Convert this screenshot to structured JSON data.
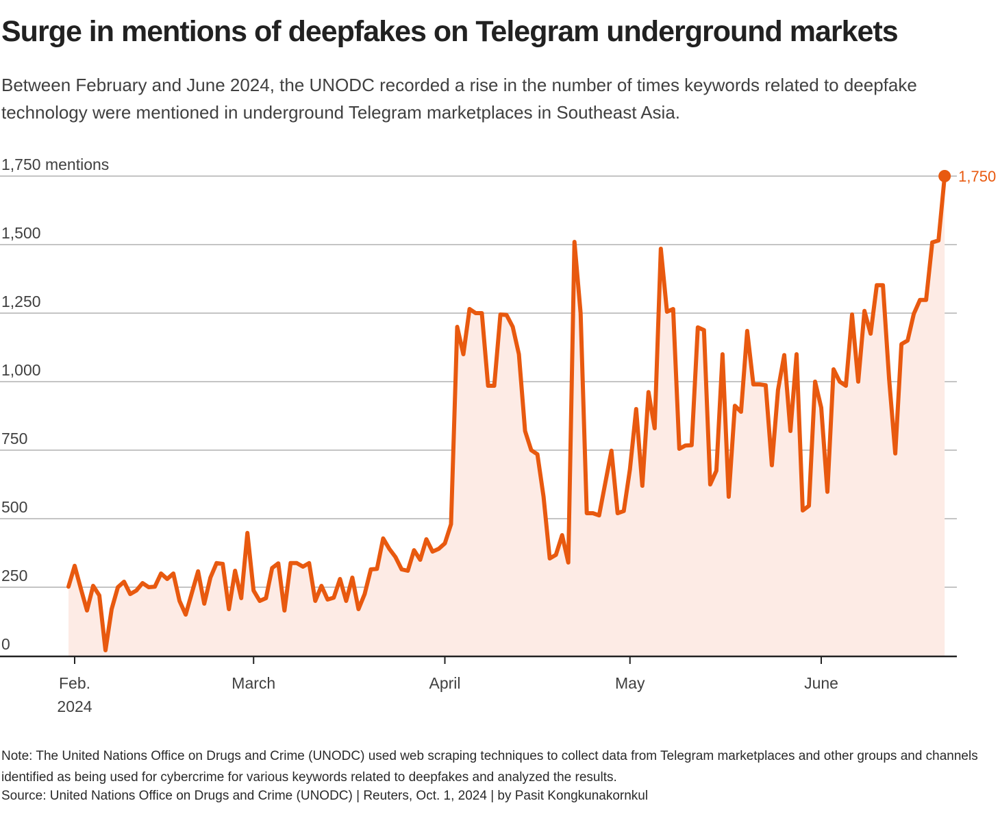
{
  "header": {
    "title": "Surge in mentions of deepfakes on Telegram underground markets",
    "subtitle": "Between February and June 2024, the UNODC recorded a rise in the number of times keywords related to deepfake technology were mentioned in underground Telegram marketplaces in Southeast Asia."
  },
  "footer": {
    "note": "Note: The United Nations Office on Drugs and Crime (UNODC) used web scraping techniques to collect data from Telegram marketplaces and other groups and channels identified as being used for cybercrime for various keywords related to deepfakes and analyzed the results.",
    "source": "Source: United Nations Office on Drugs and Crime (UNODC) | Reuters, Oct. 1, 2024 | by Pasit Kongkunakornkul"
  },
  "colors": {
    "line": "#e8590f",
    "fill": "#fdebe5",
    "grid": "#c4c4c4",
    "axis": "#222222"
  },
  "chart_data": {
    "type": "area",
    "title": "Surge in mentions of deepfakes on Telegram underground markets",
    "ylabel": "mentions",
    "ylim": [
      0,
      1750
    ],
    "yticks": [
      {
        "value": 0,
        "label": "0"
      },
      {
        "value": 250,
        "label": "250"
      },
      {
        "value": 500,
        "label": "500"
      },
      {
        "value": 750,
        "label": "750"
      },
      {
        "value": 1000,
        "label": "1,000"
      },
      {
        "value": 1250,
        "label": "1,250"
      },
      {
        "value": 1500,
        "label": "1,500"
      },
      {
        "value": 1750,
        "label": "1,750 mentions"
      }
    ],
    "xticks": [
      {
        "day": 1,
        "label": "Feb.",
        "label2": "2024"
      },
      {
        "day": 30,
        "label": "March",
        "label2": ""
      },
      {
        "day": 61,
        "label": "April",
        "label2": ""
      },
      {
        "day": 91,
        "label": "May",
        "label2": ""
      },
      {
        "day": 122,
        "label": "June",
        "label2": ""
      }
    ],
    "x_start": "2024-01-31",
    "x_unit": "day",
    "end_label": "1,750",
    "grid": true,
    "values": [
      252,
      328,
      245,
      165,
      255,
      220,
      20,
      170,
      250,
      270,
      225,
      238,
      265,
      250,
      252,
      300,
      280,
      300,
      200,
      150,
      230,
      308,
      190,
      285,
      338,
      335,
      170,
      310,
      210,
      448,
      238,
      200,
      210,
      320,
      337,
      165,
      338,
      338,
      325,
      338,
      200,
      255,
      205,
      212,
      280,
      200,
      285,
      170,
      225,
      315,
      317,
      428,
      390,
      360,
      315,
      310,
      385,
      350,
      425,
      380,
      390,
      410,
      480,
      1200,
      1100,
      1265,
      1250,
      1250,
      985,
      985,
      1245,
      1243,
      1200,
      1100,
      820,
      750,
      735,
      580,
      355,
      368,
      440,
      340,
      1510,
      1250,
      520,
      520,
      512,
      630,
      748,
      520,
      528,
      680,
      900,
      620,
      962,
      830,
      1485,
      1255,
      1265,
      755,
      767,
      768,
      1198,
      1188,
      625,
      675,
      1100,
      580,
      912,
      890,
      1185,
      990,
      990,
      987,
      695,
      970,
      1097,
      820,
      1100,
      530,
      547,
      1000,
      905,
      598,
      1045,
      1000,
      985,
      1245,
      1000,
      1258,
      1175,
      1352,
      1352,
      1010,
      738,
      1137,
      1150,
      1247,
      1298,
      1298,
      1508,
      1515,
      1750
    ]
  }
}
